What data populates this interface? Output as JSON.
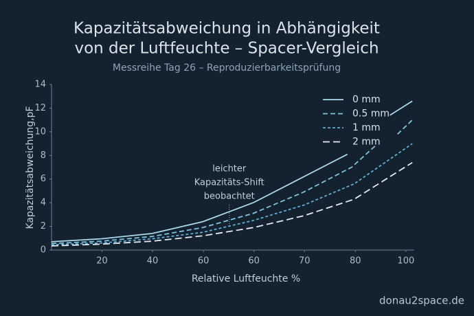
{
  "chart_data": {
    "type": "line",
    "title": [
      "Kapazitätsabweichung in Abhängigkeit",
      "von der Luftfeuchte – Spacer-Vergleich"
    ],
    "subtitle": "Messreihe Tag 26 – Reproduzierbarkeitsprüfung",
    "x_label": "Relative Luftfeuchte %",
    "y_label": "Kapazitätsabweichung,pF",
    "xlim": [
      6.7,
      102.2
    ],
    "ylim": [
      0,
      14
    ],
    "xticks": [
      20,
      {
        "value": 33.3,
        "label": "40"
      },
      {
        "value": 46.7,
        "label": "60"
      },
      60,
      {
        "value": 73.3,
        "label": "70"
      },
      {
        "value": 86.7,
        "label": "80"
      },
      100
    ],
    "yticks": [
      0,
      2,
      4,
      6,
      8,
      10,
      12,
      14
    ],
    "legend": "upper right",
    "series": [
      {
        "name": "0 mm",
        "color": "#a9d9ea",
        "dash": "solid",
        "x": [
          6.7,
          19.8,
          33.2,
          46.5,
          59.8,
          73.1,
          84.6,
          null,
          95.8,
          101.7
        ],
        "values": [
          0.7,
          0.95,
          1.4,
          2.4,
          4.0,
          6.2,
          8.1,
          null,
          11.4,
          12.6
        ]
      },
      {
        "name": "0.5 mm",
        "color": "#7fc4e0",
        "dash": "dashed",
        "x": [
          6.7,
          19.8,
          33.2,
          46.5,
          59.8,
          73.1,
          85.7,
          91.9,
          null,
          97.8,
          101.7
        ],
        "values": [
          0.55,
          0.75,
          1.15,
          1.9,
          3.1,
          4.9,
          7.0,
          8.8,
          null,
          9.8,
          11.0
        ]
      },
      {
        "name": "1 mm",
        "color": "#5fb0d8",
        "dash": "dotted",
        "x": [
          6.7,
          19.8,
          33.2,
          46.5,
          59.8,
          73.1,
          86.4,
          101.7
        ],
        "values": [
          0.45,
          0.6,
          0.95,
          1.5,
          2.5,
          3.8,
          5.6,
          9.0
        ]
      },
      {
        "name": "2 mm",
        "color": "#e3ebef",
        "dash": "long-dashed",
        "x": [
          6.7,
          19.8,
          33.2,
          46.5,
          59.8,
          73.1,
          86.4,
          101.7
        ],
        "values": [
          0.35,
          0.5,
          0.75,
          1.2,
          1.9,
          2.9,
          4.3,
          7.4
        ]
      }
    ],
    "annotation": {
      "text": [
        "leichter",
        "Kapazitäts-Shift",
        "beobachtet"
      ],
      "x": 53.5,
      "y": 2.2
    },
    "watermark": "donau2space.de"
  }
}
